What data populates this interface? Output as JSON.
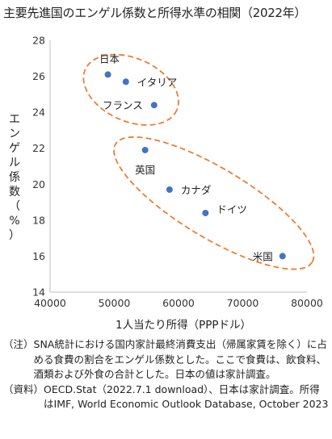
{
  "title": "主要先進国のエンゲル係数と所得水準の相関（2022年）",
  "chart_data": {
    "type": "scatter",
    "xlabel": "1人当たり所得（PPPドル）",
    "ylabel": "エンゲル係数（%）",
    "xlim": [
      40000,
      80000
    ],
    "ylim": [
      14,
      28
    ],
    "xticks": [
      "40000",
      "50000",
      "60000",
      "70000",
      "80000"
    ],
    "yticks": [
      "14",
      "16",
      "18",
      "20",
      "22",
      "24",
      "26",
      "28"
    ],
    "grid": false,
    "marker_color": "#4472c4",
    "highlight_color": "#ed7d31",
    "points": [
      {
        "label": "日本",
        "x": 49000,
        "y": 26.1
      },
      {
        "label": "イタリア",
        "x": 51800,
        "y": 25.7
      },
      {
        "label": "フランス",
        "x": 56200,
        "y": 24.4
      },
      {
        "label": "英国",
        "x": 54800,
        "y": 21.9
      },
      {
        "label": "カナダ",
        "x": 58600,
        "y": 19.7
      },
      {
        "label": "ドイツ",
        "x": 64200,
        "y": 18.4
      },
      {
        "label": "米国",
        "x": 76200,
        "y": 16.0
      }
    ],
    "groups": [
      {
        "members": [
          "日本",
          "イタリア",
          "フランス"
        ],
        "style": "dashed-ellipse"
      },
      {
        "members": [
          "英国",
          "カナダ",
          "ドイツ",
          "米国"
        ],
        "style": "dashed-ellipse"
      }
    ]
  },
  "notes": [
    {
      "tag": "（注）",
      "text": "SNA統計における国内家計最終消費支出（帰属家賃を除く）に占める食費の割合をエンゲル係数とした。ここで食費は、飲食料、酒類および外食の合計とした。日本の値は家計調査。"
    },
    {
      "tag": "（資料）",
      "text": "OECD.Stat（2022.7.1 download）、日本は家計調査。所得はIMF, World Economic Outlook Database, October 2023"
    }
  ]
}
